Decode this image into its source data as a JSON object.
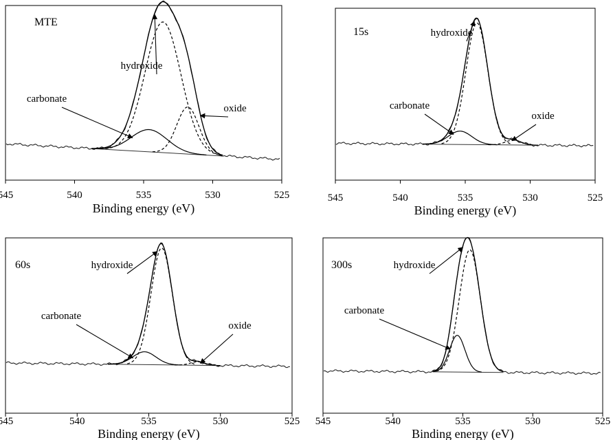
{
  "chart_data": [
    {
      "type": "line",
      "panel_label": "MTE",
      "xlabel": "Binding energy (eV)",
      "xlim": [
        545,
        525
      ],
      "x_ticks": [
        545,
        540,
        535,
        530,
        525
      ],
      "baseline": {
        "left": 0.1,
        "right": -0.02
      },
      "components": [
        {
          "name": "hydroxide",
          "center": 533.6,
          "height": 1.0,
          "width": 1.3
        },
        {
          "name": "carbonate",
          "center": 534.6,
          "height": 0.17,
          "width": 1.3
        },
        {
          "name": "oxide",
          "center": 531.8,
          "height": 0.36,
          "width": 0.8
        }
      ],
      "annotations": [
        {
          "text": "hydroxide",
          "target": 534.2
        },
        {
          "text": "carbonate",
          "target": 535.8
        },
        {
          "text": "oxide",
          "target": 530.9
        }
      ]
    },
    {
      "type": "line",
      "panel_label": "15s",
      "xlabel": "Binding energy (eV)",
      "xlim": [
        545,
        525
      ],
      "x_ticks": [
        545,
        540,
        535,
        530,
        525
      ],
      "baseline": {
        "left": 0.02,
        "right": 0.0
      },
      "components": [
        {
          "name": "hydroxide",
          "center": 534.1,
          "height": 1.0,
          "width": 0.85
        },
        {
          "name": "carbonate",
          "center": 535.4,
          "height": 0.11,
          "width": 0.9
        },
        {
          "name": "oxide",
          "center": 531.3,
          "height": 0.04,
          "width": 0.6
        }
      ],
      "annotations": [
        {
          "text": "hydroxide",
          "target": 534.3
        },
        {
          "text": "carbonate",
          "target": 535.9
        },
        {
          "text": "oxide",
          "target": 531.4
        }
      ]
    },
    {
      "type": "line",
      "panel_label": "60s",
      "xlabel": "Binding energy (eV)",
      "xlim": [
        545,
        525
      ],
      "x_ticks": [
        545,
        540,
        535,
        530,
        525
      ],
      "baseline": {
        "left": 0.03,
        "right": 0.0
      },
      "components": [
        {
          "name": "hydroxide",
          "center": 534.1,
          "height": 1.0,
          "width": 0.75
        },
        {
          "name": "carbonate",
          "center": 535.3,
          "height": 0.11,
          "width": 0.8
        },
        {
          "name": "oxide",
          "center": 531.6,
          "height": 0.03,
          "width": 0.5
        }
      ],
      "annotations": [
        {
          "text": "hydroxide",
          "target": 534.4
        },
        {
          "text": "carbonate",
          "target": 536.1
        },
        {
          "text": "oxide",
          "target": 531.4
        }
      ]
    },
    {
      "type": "line",
      "panel_label": "300s",
      "xlabel": "Binding energy (eV)",
      "xlim": [
        545,
        525
      ],
      "x_ticks": [
        545,
        540,
        535,
        530,
        525
      ],
      "baseline": {
        "left": 0.02,
        "right": 0.0
      },
      "components": [
        {
          "name": "hydroxide",
          "center": 534.5,
          "height": 1.0,
          "width": 0.75
        },
        {
          "name": "carbonate",
          "center": 535.4,
          "height": 0.3,
          "width": 0.55
        }
      ],
      "annotations": [
        {
          "text": "hydroxide",
          "target": 535.0
        },
        {
          "text": "carbonate",
          "target": 535.9
        }
      ]
    }
  ]
}
